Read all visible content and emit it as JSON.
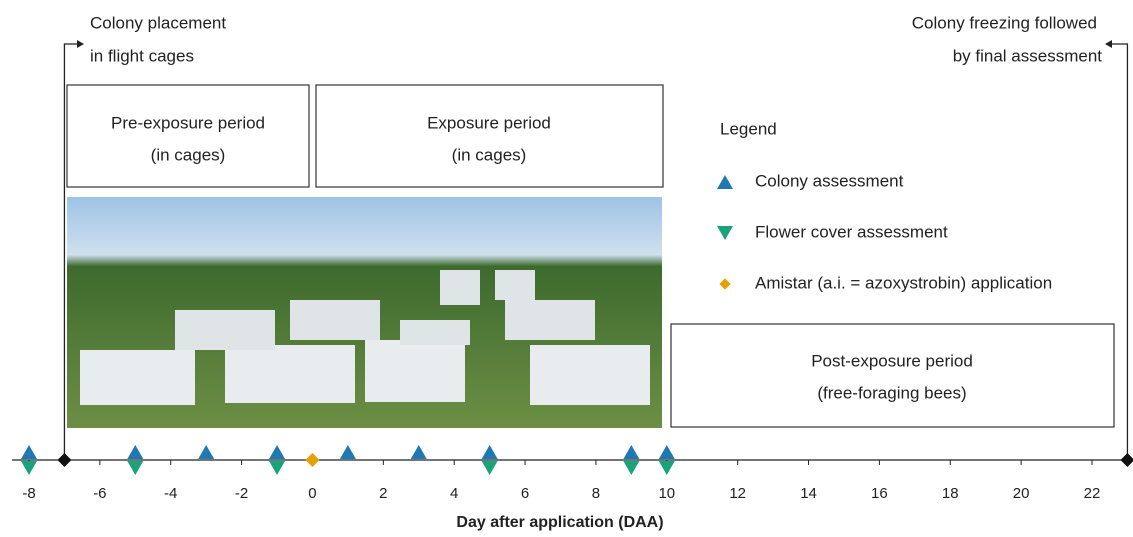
{
  "timeline": {
    "axis_title": "Day after application (DAA)",
    "ticks": [
      -8,
      -6,
      -4,
      -2,
      0,
      2,
      4,
      6,
      8,
      10,
      12,
      14,
      16,
      18,
      20,
      22
    ],
    "start_event": {
      "lines": [
        "Colony placement",
        "in flight cages"
      ],
      "day": -7
    },
    "end_event": {
      "lines": [
        "Colony freezing followed",
        "by final assessment"
      ],
      "day": 23
    },
    "periods": [
      {
        "lines": [
          "Pre-exposure period",
          "(in cages)"
        ]
      },
      {
        "lines": [
          "Exposure period",
          "(in cages)"
        ]
      },
      {
        "lines": [
          "Post-exposure period",
          "(free-foraging bees)"
        ]
      }
    ],
    "legend": {
      "title": "Legend",
      "items": [
        {
          "label": "Colony assessment",
          "color": "#1f77b4",
          "shape": "up",
          "days": [
            -8,
            -5,
            -3,
            -1,
            1,
            3,
            5,
            9,
            10
          ]
        },
        {
          "label": "Flower cover assessment",
          "color": "#1aa37a",
          "shape": "down",
          "days": [
            -8,
            -5,
            -1,
            5,
            9,
            10
          ]
        },
        {
          "label": "Amistar (a.i. = azoxystrobin) application",
          "color": "#e69f00",
          "shape": "diamond",
          "days": [
            0
          ]
        }
      ]
    }
  }
}
